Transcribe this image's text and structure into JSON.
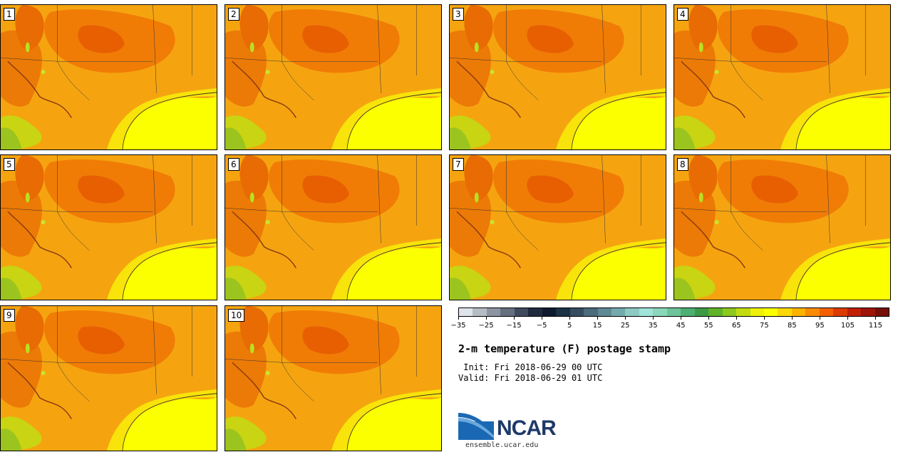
{
  "panels": [
    {
      "label": "1"
    },
    {
      "label": "2"
    },
    {
      "label": "3"
    },
    {
      "label": "4"
    },
    {
      "label": "5"
    },
    {
      "label": "6"
    },
    {
      "label": "7"
    },
    {
      "label": "8"
    },
    {
      "label": "9"
    },
    {
      "label": "10"
    }
  ],
  "colorbar": {
    "colors": [
      "#dfe3ea",
      "#b6bcc6",
      "#8d95a3",
      "#666f80",
      "#3f4a5e",
      "#1f2a3f",
      "#0e1a2e",
      "#1e3246",
      "#354d60",
      "#4c6b7b",
      "#5e8b93",
      "#73aaab",
      "#8ccac3",
      "#9fe4d8",
      "#8ad7b9",
      "#6ec49a",
      "#4fae72",
      "#3d9a44",
      "#5fb22a",
      "#8dc81c",
      "#c0dc10",
      "#eef00a",
      "#fbff00",
      "#fbd806",
      "#fbb300",
      "#f98b02",
      "#f25f00",
      "#dd3a04",
      "#c01f06",
      "#9e1408",
      "#751008"
    ],
    "tick_labels": [
      "-35",
      "-25",
      "-15",
      "-5",
      "5",
      "15",
      "25",
      "35",
      "45",
      "55",
      "65",
      "75",
      "85",
      "95",
      "105",
      "115"
    ]
  },
  "title": "2-m temperature (F) postage stamp",
  "init_line": " Init: Fri 2018-06-29 00 UTC",
  "valid_line": "Valid: Fri 2018-06-29 01 UTC",
  "logo_text": "NCAR",
  "logo_url": "ensemble.ucar.edu"
}
